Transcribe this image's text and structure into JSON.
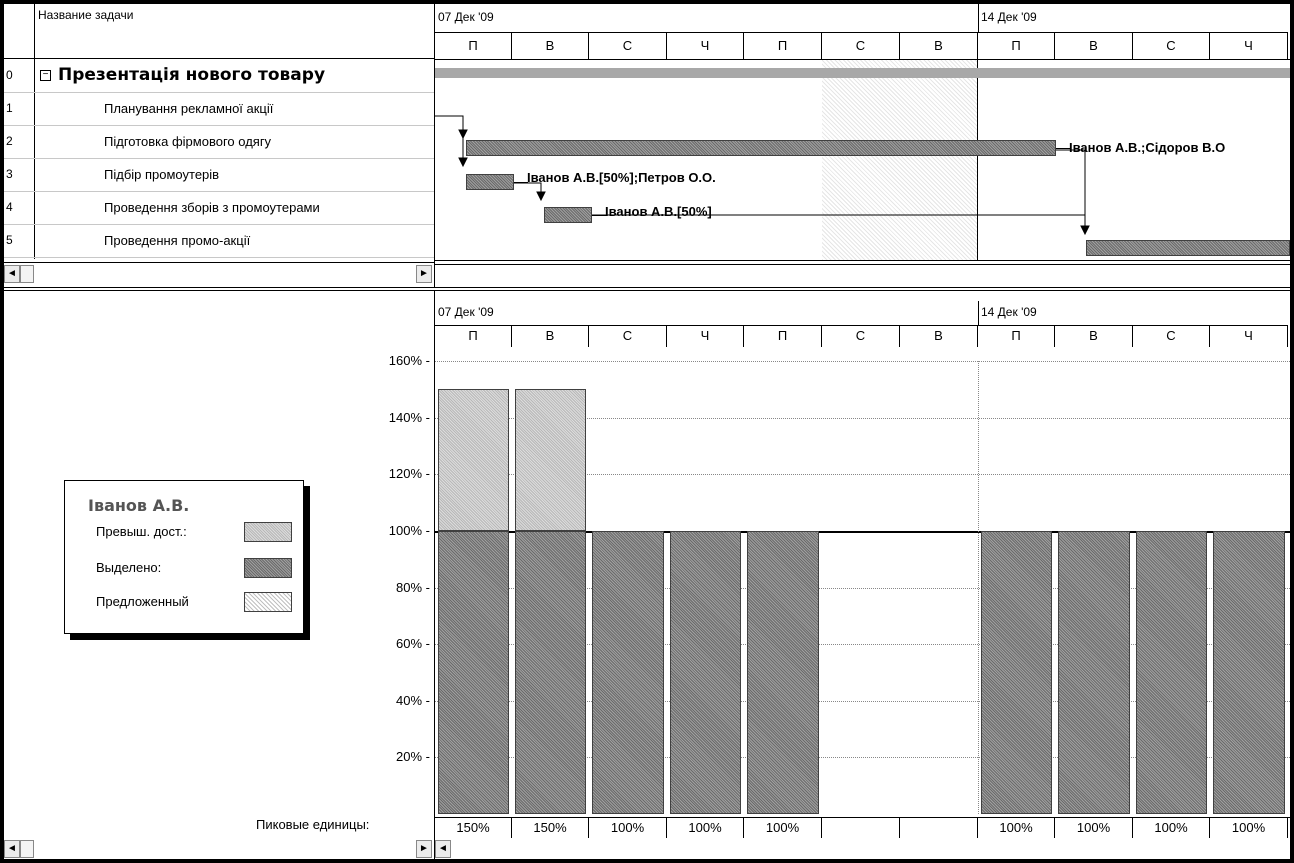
{
  "top": {
    "column_header": "Название задачи",
    "tasks": [
      {
        "id": "0",
        "name": "Презентація нового товару",
        "summary": true,
        "collapse_icon": "minus-box-icon"
      },
      {
        "id": "1",
        "name": "Планування  рекламної акції"
      },
      {
        "id": "2",
        "name": "Підготовка фірмового одягу"
      },
      {
        "id": "3",
        "name": "Підбір промоутерів"
      },
      {
        "id": "4",
        "name": "Проведення зборів з промоутерами"
      },
      {
        "id": "5",
        "name": "Проведення промо-акції"
      }
    ],
    "weeks": [
      "07 Дек '09",
      "14 Дек '09"
    ],
    "days": [
      "П",
      "В",
      "С",
      "Ч",
      "П",
      "С",
      "В",
      "П",
      "В",
      "С",
      "Ч"
    ],
    "bar_labels": {
      "task2": "Іванов А.В.;Сідоров В.О",
      "task3": "Іванов А.В.[50%];Петров О.О.",
      "task4": "Іванов А.В.[50%]"
    }
  },
  "bottom": {
    "weeks": [
      "07 Дек '09",
      "14 Дек '09"
    ],
    "days": [
      "П",
      "В",
      "С",
      "Ч",
      "П",
      "С",
      "В",
      "П",
      "В",
      "С",
      "Ч"
    ],
    "legend": {
      "title": "Іванов А.В.",
      "items": [
        "Превыш. дост.:",
        "Выделено:",
        "Предложенный"
      ]
    },
    "peak_label": "Пиковые единицы:",
    "peak_values": [
      "150%",
      "150%",
      "100%",
      "100%",
      "100%",
      "",
      "",
      "100%",
      "100%",
      "100%",
      "100%"
    ],
    "colors": {
      "allocated": "#8c8c8c",
      "overallocated": "#c8c8c8"
    }
  },
  "chart_data": {
    "type": "bar",
    "title": "Іванов А.В.",
    "categories": [
      "П",
      "В",
      "С",
      "Ч",
      "П",
      "С",
      "В",
      "П",
      "В",
      "С",
      "Ч"
    ],
    "series": [
      {
        "name": "Выделено:",
        "values": [
          100,
          100,
          100,
          100,
          100,
          0,
          0,
          100,
          100,
          100,
          100
        ]
      },
      {
        "name": "Превыш. дост.:",
        "values": [
          50,
          50,
          0,
          0,
          0,
          0,
          0,
          0,
          0,
          0,
          0
        ]
      }
    ],
    "y_ticks": [
      "160% -",
      "140% -",
      "120% -",
      "100% -",
      "80% -",
      "60% -",
      "40% -",
      "20% -"
    ],
    "ylim": [
      0,
      160
    ],
    "grid": true,
    "legend": "left"
  }
}
